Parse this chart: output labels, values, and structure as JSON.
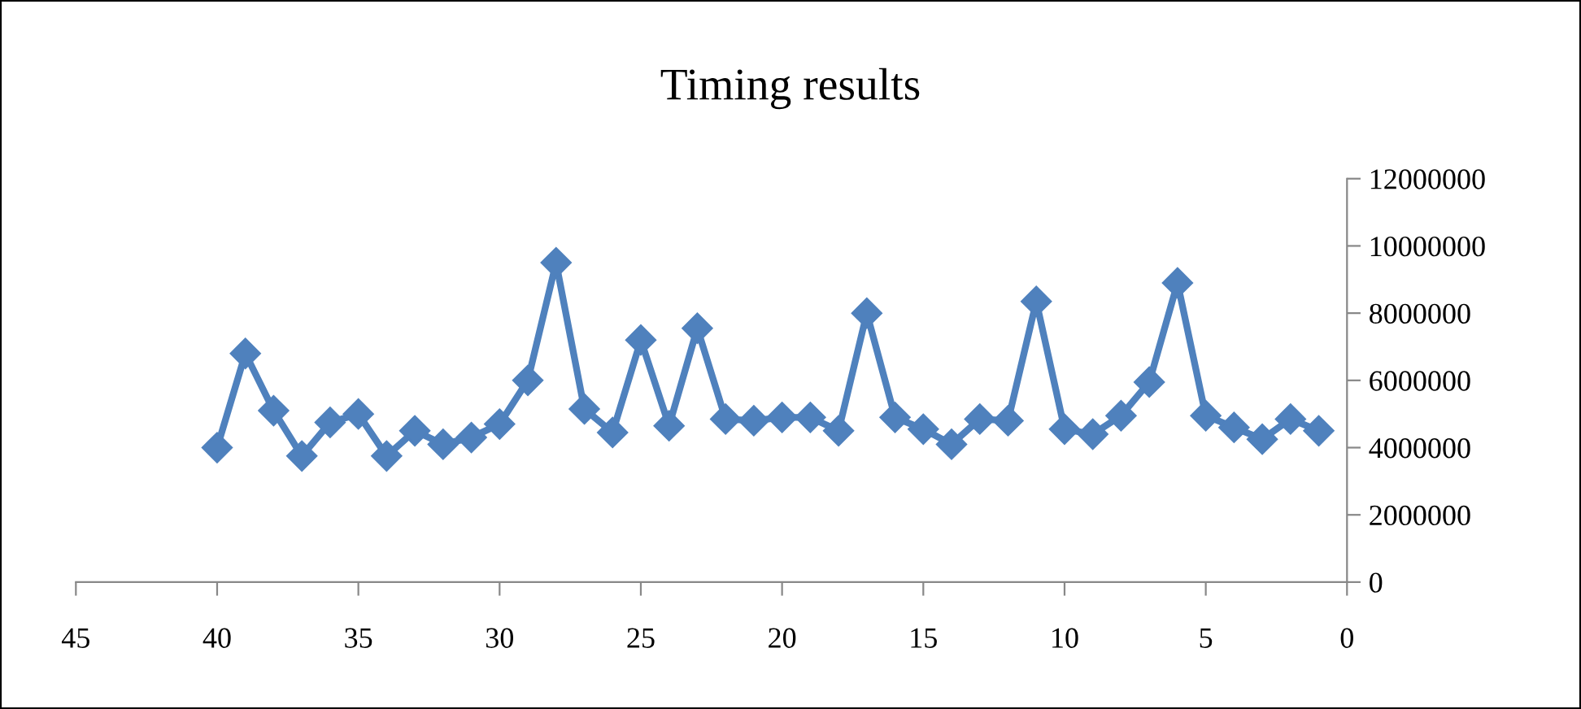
{
  "chart_data": {
    "type": "line",
    "title": "Timing results",
    "x": [
      40,
      39,
      38,
      37,
      36,
      35,
      34,
      33,
      32,
      31,
      30,
      29,
      28,
      27,
      26,
      25,
      24,
      23,
      22,
      21,
      20,
      19,
      18,
      17,
      16,
      15,
      14,
      13,
      12,
      11,
      10,
      9,
      8,
      7,
      6,
      5,
      4,
      3,
      2,
      1
    ],
    "series": [
      {
        "color": "#4f81bd",
        "values": [
          4000000,
          6800000,
          5100000,
          3750000,
          4750000,
          5000000,
          3750000,
          4500000,
          4100000,
          4300000,
          4700000,
          6000000,
          9500000,
          5150000,
          4450000,
          7200000,
          4650000,
          7550000,
          4850000,
          4800000,
          4900000,
          4900000,
          4500000,
          8000000,
          4900000,
          4550000,
          4100000,
          4850000,
          4800000,
          8350000,
          4550000,
          4400000,
          4950000,
          5950000,
          8900000,
          4950000,
          4600000,
          4250000,
          4850000,
          4500000
        ]
      }
    ],
    "xlim": [
      45,
      0
    ],
    "xticks": [
      45,
      40,
      35,
      30,
      25,
      20,
      15,
      10,
      5,
      0
    ],
    "ylim": [
      0,
      12000000
    ],
    "yticks": [
      0,
      2000000,
      4000000,
      6000000,
      8000000,
      10000000,
      12000000
    ],
    "marker": "diamond",
    "line_style": "solid",
    "grid": false,
    "legend": false
  }
}
